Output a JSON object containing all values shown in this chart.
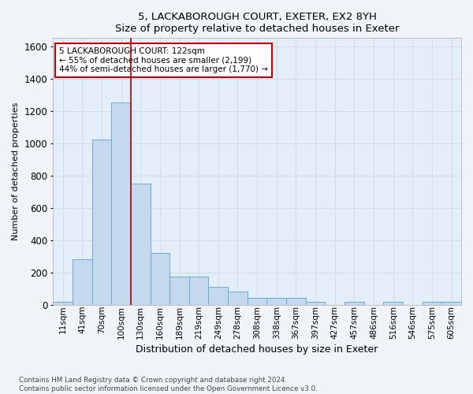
{
  "title1": "5, LACKABOROUGH COURT, EXETER, EX2 8YH",
  "title2": "Size of property relative to detached houses in Exeter",
  "xlabel": "Distribution of detached houses by size in Exeter",
  "ylabel": "Number of detached properties",
  "bar_color": "#c5d9ee",
  "bar_edge_color": "#6aaad4",
  "background_color": "#e4eef8",
  "grid_color": "#d0dce8",
  "fig_bg_color": "#f0f4f8",
  "categories": [
    "11sqm",
    "41sqm",
    "70sqm",
    "100sqm",
    "130sqm",
    "160sqm",
    "189sqm",
    "219sqm",
    "249sqm",
    "278sqm",
    "308sqm",
    "338sqm",
    "367sqm",
    "397sqm",
    "427sqm",
    "457sqm",
    "486sqm",
    "516sqm",
    "546sqm",
    "575sqm",
    "605sqm"
  ],
  "values": [
    15,
    280,
    1020,
    1250,
    750,
    320,
    175,
    175,
    110,
    80,
    40,
    40,
    40,
    15,
    0,
    15,
    0,
    15,
    0,
    15,
    15
  ],
  "ylim": [
    0,
    1650
  ],
  "yticks": [
    0,
    200,
    400,
    600,
    800,
    1000,
    1200,
    1400,
    1600
  ],
  "vline_x": 3.5,
  "vline_color": "#aa0000",
  "annotation_line1": "5 LACKABOROUGH COURT: 122sqm",
  "annotation_line2": "← 55% of detached houses are smaller (2,199)",
  "annotation_line3": "44% of semi-detached houses are larger (1,770) →",
  "annotation_box_color": "#ffffff",
  "annotation_box_edge": "#cc0000",
  "footnote1": "Contains HM Land Registry data © Crown copyright and database right 2024.",
  "footnote2": "Contains public sector information licensed under the Open Government Licence v3.0."
}
